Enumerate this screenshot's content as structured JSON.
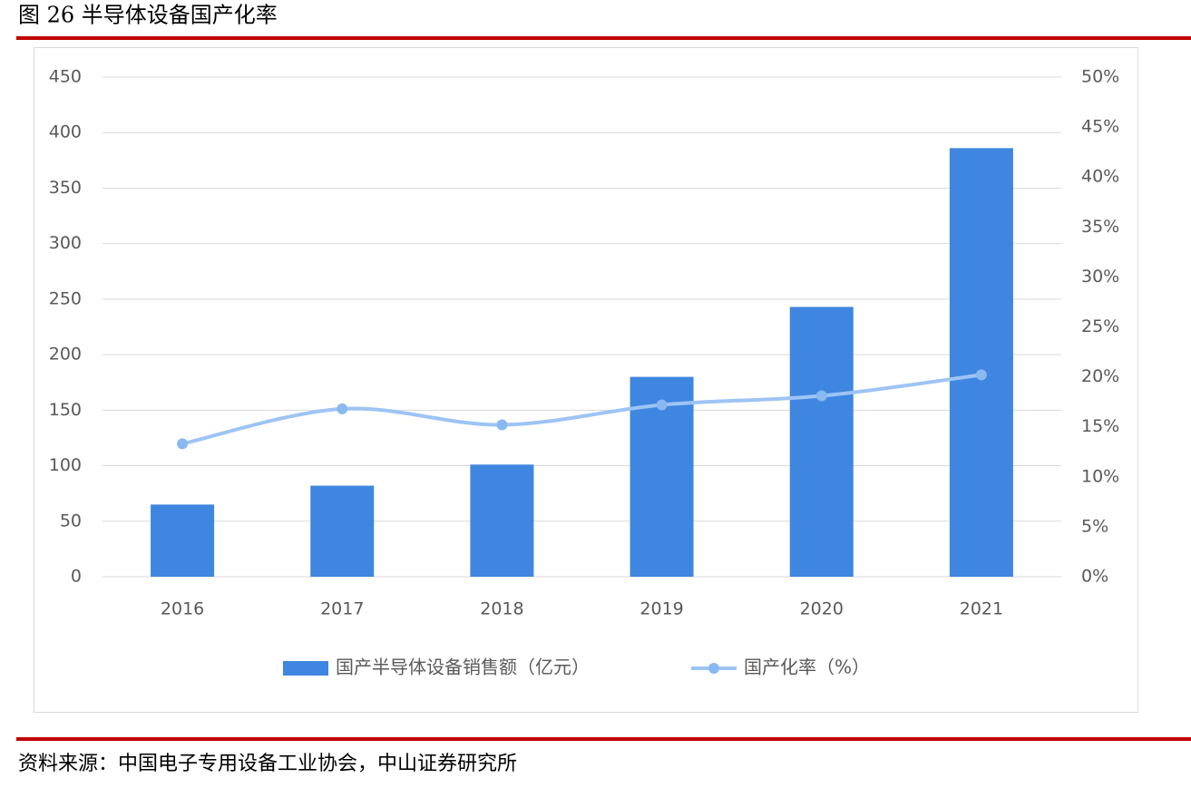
{
  "chart_data": {
    "type": "bar-line",
    "title": "图 26 半导体设备国产化率",
    "source": "资料来源：中国电子专用设备工业协会，中山证券研究所",
    "categories": [
      "2016",
      "2017",
      "2018",
      "2019",
      "2020",
      "2021"
    ],
    "series": [
      {
        "name": "国产半导体设备销售额（亿元）",
        "type": "bar",
        "color": "#3f86e0",
        "values": [
          65,
          82,
          101,
          180,
          243,
          386
        ]
      },
      {
        "name": "国产化率（%）",
        "type": "line",
        "axis": "y2",
        "color": "#9dc4f4",
        "values": [
          13.3,
          16.8,
          15.2,
          17.2,
          18.1,
          20.2
        ]
      }
    ],
    "ylim": [
      0,
      450
    ],
    "yticks": [
      0,
      50,
      100,
      150,
      200,
      250,
      300,
      350,
      400,
      450
    ],
    "y2lim": [
      0,
      50
    ],
    "y2ticks": [
      {
        "value": 0,
        "label": "0%"
      },
      {
        "value": 5,
        "label": "5%"
      },
      {
        "value": 10,
        "label": "10%"
      },
      {
        "value": 15,
        "label": "15%"
      },
      {
        "value": 20,
        "label": "20%"
      },
      {
        "value": 25,
        "label": "25%"
      },
      {
        "value": 30,
        "label": "30%"
      },
      {
        "value": 35,
        "label": "35%"
      },
      {
        "value": 40,
        "label": "40%"
      },
      {
        "value": 45,
        "label": "45%"
      },
      {
        "value": 50,
        "label": "50%"
      }
    ],
    "grid": true,
    "legend": "bottom"
  }
}
